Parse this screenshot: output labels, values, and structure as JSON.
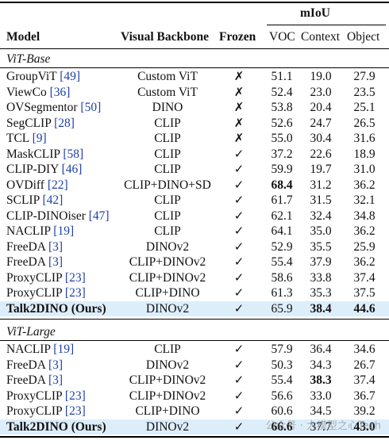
{
  "header": {
    "miou": "mIoU",
    "model": "Model",
    "backbone": "Visual Backbone",
    "frozen": "Frozen",
    "voc": "VOC",
    "context": "Context",
    "object": "Object"
  },
  "sections": [
    {
      "title": "ViT-Base",
      "rows": [
        {
          "model": "GroupViT",
          "cite": "[49]",
          "backbone": "Custom ViT",
          "frozen": "✗",
          "voc": "51.1",
          "ctx": "19.0",
          "obj": "27.9"
        },
        {
          "model": "ViewCo",
          "cite": "[36]",
          "backbone": "Custom ViT",
          "frozen": "✗",
          "voc": "52.4",
          "ctx": "23.0",
          "obj": "23.5"
        },
        {
          "model": "OVSegmentor",
          "cite": "[50]",
          "backbone": "DINO",
          "frozen": "✗",
          "voc": "53.8",
          "ctx": "20.4",
          "obj": "25.1"
        },
        {
          "model": "SegCLIP",
          "cite": "[28]",
          "backbone": "CLIP",
          "frozen": "✗",
          "voc": "52.6",
          "ctx": "24.7",
          "obj": "26.5"
        },
        {
          "model": "TCL",
          "cite": "[9]",
          "backbone": "CLIP",
          "frozen": "✗",
          "voc": "55.0",
          "ctx": "30.4",
          "obj": "31.6"
        },
        {
          "model": "MaskCLIP",
          "cite": "[58]",
          "backbone": "CLIP",
          "frozen": "✓",
          "voc": "37.2",
          "ctx": "22.6",
          "obj": "18.9"
        },
        {
          "model": "CLIP-DIY",
          "cite": "[46]",
          "backbone": "CLIP",
          "frozen": "✓",
          "voc": "59.9",
          "ctx": "19.7",
          "obj": "31.0"
        },
        {
          "model": "OVDiff",
          "cite": "[22]",
          "backbone": "CLIP+DINO+SD",
          "frozen": "✓",
          "voc": "68.4",
          "ctx": "31.2",
          "obj": "36.2",
          "bold": [
            "voc"
          ]
        },
        {
          "model": "SCLIP",
          "cite": "[42]",
          "backbone": "CLIP",
          "frozen": "✓",
          "voc": "61.7",
          "ctx": "31.5",
          "obj": "32.1"
        },
        {
          "model": "CLIP-DINOiser",
          "cite": "[47]",
          "backbone": "CLIP",
          "frozen": "✓",
          "voc": "62.1",
          "ctx": "32.4",
          "obj": "34.8"
        },
        {
          "model": "NACLIP",
          "cite": "[19]",
          "backbone": "CLIP",
          "frozen": "✓",
          "voc": "64.1",
          "ctx": "35.0",
          "obj": "36.2"
        },
        {
          "model": "FreeDA",
          "cite": "[3]",
          "backbone": "DINOv2",
          "frozen": "✓",
          "voc": "52.9",
          "ctx": "35.5",
          "obj": "25.9"
        },
        {
          "model": "FreeDA",
          "cite": "[3]",
          "backbone": "CLIP+DINOv2",
          "frozen": "✓",
          "voc": "55.4",
          "ctx": "37.9",
          "obj": "36.2"
        },
        {
          "model": "ProxyCLIP",
          "cite": "[23]",
          "backbone": "CLIP+DINOv2",
          "frozen": "✓",
          "voc": "58.6",
          "ctx": "33.8",
          "obj": "37.4"
        },
        {
          "model": "ProxyCLIP",
          "cite": "[23]",
          "backbone": "CLIP+DINO",
          "frozen": "✓",
          "voc": "61.3",
          "ctx": "35.3",
          "obj": "37.5"
        },
        {
          "model": "Talk2DINO (Ours)",
          "cite": "",
          "backbone": "DINOv2",
          "frozen": "✓",
          "voc": "65.9",
          "ctx": "38.4",
          "obj": "44.6",
          "bold": [
            "model",
            "ctx",
            "obj"
          ],
          "highlight": true
        }
      ]
    },
    {
      "title": "ViT-Large",
      "rows": [
        {
          "model": "NACLIP",
          "cite": "[19]",
          "backbone": "CLIP",
          "frozen": "✓",
          "voc": "57.9",
          "ctx": "36.4",
          "obj": "34.6"
        },
        {
          "model": "FreeDA",
          "cite": "[3]",
          "backbone": "DINOv2",
          "frozen": "✓",
          "voc": "50.3",
          "ctx": "34.3",
          "obj": "26.7"
        },
        {
          "model": "FreeDA",
          "cite": "[3]",
          "backbone": "CLIP+DINOv2",
          "frozen": "✓",
          "voc": "55.4",
          "ctx": "38.3",
          "obj": "37.4",
          "bold": [
            "ctx"
          ]
        },
        {
          "model": "ProxyCLIP",
          "cite": "[23]",
          "backbone": "CLIP+DINOv2",
          "frozen": "✓",
          "voc": "56.6",
          "ctx": "33.0",
          "obj": "36.7"
        },
        {
          "model": "ProxyCLIP",
          "cite": "[23]",
          "backbone": "CLIP+DINO",
          "frozen": "✓",
          "voc": "60.6",
          "ctx": "34.5",
          "obj": "39.2"
        },
        {
          "model": "Talk2DINO (Ours)",
          "cite": "",
          "backbone": "DINOv2",
          "frozen": "✓",
          "voc": "66.6",
          "ctx": "37.7",
          "obj": "43.0",
          "bold": [
            "model",
            "voc",
            "obj"
          ],
          "highlight": true
        }
      ]
    }
  ],
  "watermark": "公众号 · 大模型之心Tech"
}
